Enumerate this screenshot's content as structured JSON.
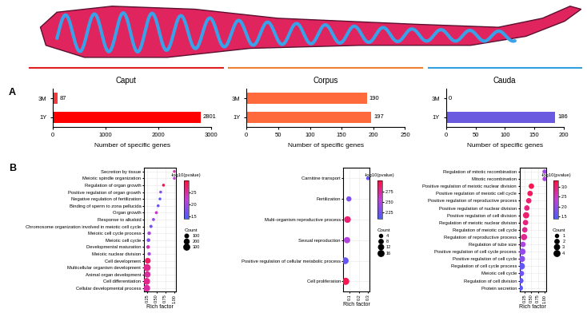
{
  "panel_labels": [
    "A",
    "B"
  ],
  "chart_data": [
    {
      "type": "bar",
      "orientation": "horizontal",
      "title": "Caput",
      "categories": [
        "3M",
        "1Y"
      ],
      "values": [
        87,
        2801
      ],
      "colors": [
        "#f23b3b",
        "#ff0000"
      ],
      "xlim": [
        0,
        3000
      ],
      "xticks": [
        0,
        1000,
        2000,
        3000
      ],
      "xlabel": "Number of specific genes",
      "data_labels": true
    },
    {
      "type": "bar",
      "orientation": "horizontal",
      "title": "Corpus",
      "categories": [
        "3M",
        "1Y"
      ],
      "values": [
        190,
        197
      ],
      "colors": [
        "#ff6a3d",
        "#ff6a3d"
      ],
      "xlim": [
        0,
        250
      ],
      "xticks": [
        0,
        50,
        100,
        150,
        200,
        250
      ],
      "xlabel": "Number of specific genes",
      "data_labels": true
    },
    {
      "type": "bar",
      "orientation": "horizontal",
      "title": "Cauda",
      "categories": [
        "3M",
        "1Y"
      ],
      "values": [
        0,
        186
      ],
      "colors": [
        "#6a5ae0",
        "#6a5ae0"
      ],
      "xlim": [
        0,
        200
      ],
      "xticks": [
        0,
        50,
        100,
        150,
        200
      ],
      "xlabel": "Number of specific genes",
      "data_labels": true
    },
    {
      "type": "scatter",
      "categories": [
        "Secretion by tissue",
        "Meiotic spindle organization",
        "Regulation of organ growth",
        "Positive regulation of organ growth",
        "Negative regulation of fertilization",
        "Binding of sperm to zona pellucida",
        "Organ growth",
        "Response to alkaloid",
        "Chromosome organization involved in meiotic cell cycle",
        "Meiotic cell cycle process",
        "Meiotic cell cycle",
        "Developmental maturation",
        "Meiotic nuclear division",
        "Cell development",
        "Multicellular organism development",
        "Animal organ development",
        "Cell differentiation",
        "Cellular developmental process"
      ],
      "values": [
        1.0,
        1.0,
        0.7,
        0.62,
        0.6,
        0.55,
        0.5,
        0.42,
        0.35,
        0.3,
        0.28,
        0.27,
        0.3,
        0.26,
        0.24,
        0.25,
        0.23,
        0.23
      ],
      "pvalue_scores": [
        2.4,
        2.2,
        2.9,
        1.8,
        1.5,
        1.6,
        2.3,
        1.9,
        1.7,
        2.0,
        1.8,
        2.4,
        2.0,
        2.8,
        2.6,
        2.5,
        2.6,
        2.5
      ],
      "counts": [
        3,
        3,
        8,
        5,
        3,
        6,
        11,
        10,
        17,
        30,
        38,
        35,
        25,
        180,
        320,
        230,
        280,
        290
      ],
      "xlabel": "Rich factor",
      "xlim": [
        0.15,
        1.05
      ],
      "xticks": [
        0.25,
        {
          "value": 0.5,
          "label": "0.50"
        },
        0.75,
        {
          "value": 1.0,
          "label": "1.00"
        }
      ],
      "colorbar": {
        "label": "-log10(pvalue)",
        "range": [
          1.4,
          3.0
        ],
        "ticks": [
          1.5,
          2.0,
          2.5
        ]
      },
      "size_legend": {
        "title": "Count",
        "values": [
          100,
          200,
          300
        ]
      }
    },
    {
      "type": "scatter",
      "categories": [
        "Carnitine transport",
        "Fertilization",
        "Multi-organism reproductive process",
        "Sexual reproduction",
        "Positive regulation of cellular metabolic process",
        "Cell proliferation"
      ],
      "values": [
        0.3,
        0.09,
        0.075,
        0.07,
        0.05,
        0.055
      ],
      "pvalue_scores": [
        2.2,
        2.3,
        2.85,
        2.5,
        2.2,
        2.95
      ],
      "counts": [
        2,
        7,
        14,
        12,
        15,
        17
      ],
      "xlabel": "Rich factor",
      "xlim": [
        0.03,
        0.32
      ],
      "xticks": [
        0.1,
        0.2,
        0.3
      ],
      "colorbar": {
        "label": "-log10(pvalue)",
        "range": [
          2.1,
          3.0
        ],
        "ticks": [
          2.25,
          {
            "value": 2.5,
            "label": "2.50"
          },
          2.75
        ]
      },
      "size_legend": {
        "title": "Count",
        "values": [
          4,
          8,
          12,
          16
        ]
      }
    },
    {
      "type": "scatter",
      "categories": [
        "Regulation of mitotic recombination",
        "Mitotic recombination",
        "Positive regulation of meiotic nuclear division",
        "Positive regulation of meiotic cell cycle",
        "Positive regulation of reproductive process",
        "Positive regulation of nuclear division",
        "Positive regulation of cell division",
        "Regulation of meiotic nuclear division",
        "Regulation of meiotic cell cycle",
        "Regulation of reproductive process",
        "Regulation of tube size",
        "Positive regulation of cell cycle process",
        "Positive regulation of cell cycle",
        "Regulation of cell cycle process",
        "Meiotic cell cycle",
        "Regulation of cell division",
        "Protein secretion"
      ],
      "values": [
        1.0,
        1.0,
        0.5,
        0.45,
        0.4,
        0.33,
        0.3,
        0.28,
        0.25,
        0.22,
        0.18,
        0.16,
        0.14,
        0.12,
        0.12,
        0.1,
        0.08
      ],
      "pvalue_scores": [
        2.1,
        2.2,
        3.2,
        3.1,
        3.0,
        2.9,
        3.0,
        2.9,
        2.8,
        2.8,
        2.2,
        2.0,
        1.9,
        1.6,
        1.7,
        1.6,
        1.5
      ],
      "counts": [
        1,
        1,
        2,
        2,
        2,
        2,
        3,
        2,
        2,
        3,
        2,
        3,
        3,
        4,
        2,
        2,
        2
      ],
      "xlabel": "Rich factor",
      "xlim": [
        0.05,
        1.05
      ],
      "xticks": [
        0.25,
        {
          "value": 0.5,
          "label": "0.50"
        },
        0.75,
        {
          "value": 1.0,
          "label": "1.00"
        }
      ],
      "colorbar": {
        "label": "-log10(pvalue)",
        "range": [
          1.4,
          3.3
        ],
        "ticks": [
          1.5,
          2.0,
          2.5,
          3.0
        ]
      },
      "size_legend": {
        "title": "Count",
        "values": [
          1,
          2,
          3,
          4
        ]
      }
    }
  ]
}
